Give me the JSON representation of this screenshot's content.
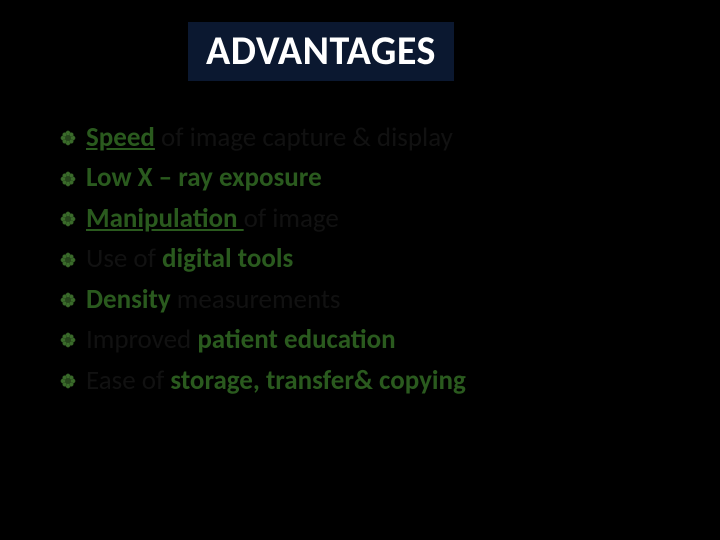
{
  "background_color": "#000000",
  "title": {
    "text": "ADVANTAGES",
    "text_color": "#ffffff",
    "box_color": "#0b1830",
    "font_size": 40,
    "font_weight": 700
  },
  "bullet": {
    "type": "flower-star",
    "fill": "#3a6b2a",
    "stroke": "#26451c",
    "size": 16
  },
  "list_font_size": 27,
  "emphasis_color": "#2a5a1e",
  "plain_color": "#111111",
  "items": [
    {
      "runs": [
        {
          "text": "Speed",
          "style": "em-u"
        },
        {
          "text": " of image capture & display",
          "style": "plain"
        }
      ]
    },
    {
      "runs": [
        {
          "text": "Low X – ray exposure",
          "style": "em"
        }
      ]
    },
    {
      "runs": [
        {
          "text": "Manipulation ",
          "style": "em-u"
        },
        {
          "text": "of image",
          "style": "plain"
        }
      ]
    },
    {
      "runs": [
        {
          "text": "Use of ",
          "style": "plain"
        },
        {
          "text": "digital tools",
          "style": "em"
        }
      ]
    },
    {
      "runs": [
        {
          "text": "Density ",
          "style": "em"
        },
        {
          "text": "measurements",
          "style": "plain"
        }
      ]
    },
    {
      "runs": [
        {
          "text": "Improved ",
          "style": "plain"
        },
        {
          "text": "patient education",
          "style": "em"
        }
      ]
    },
    {
      "runs": [
        {
          "text": "Ease of ",
          "style": "plain"
        },
        {
          "text": "storage, transfer& copying",
          "style": "em"
        }
      ]
    }
  ]
}
